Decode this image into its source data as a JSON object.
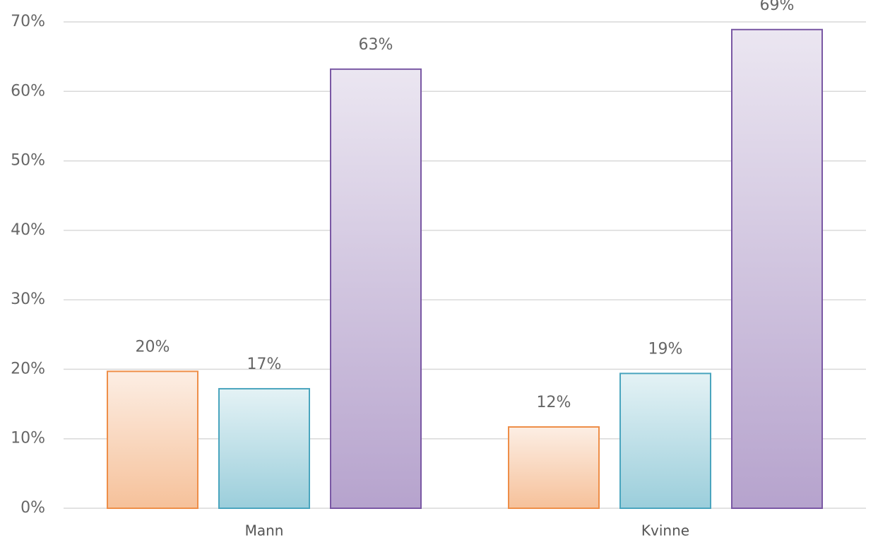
{
  "chart_data": {
    "type": "bar",
    "categories": [
      "Mann",
      "Kvinne"
    ],
    "series": [
      {
        "color": "#ee8e48",
        "values": [
          19.7,
          11.7
        ],
        "value_labels": [
          "20%",
          "12%"
        ]
      },
      {
        "color": "#4aa5be",
        "values": [
          17.2,
          19.4
        ],
        "value_labels": [
          "17%",
          "19%"
        ]
      },
      {
        "color": "#7a58a4",
        "values": [
          63.2,
          68.9
        ],
        "value_labels": [
          "63%",
          "69%"
        ]
      }
    ],
    "ylim": [
      0,
      70
    ],
    "yticks": [
      {
        "value": 0,
        "label": "0%"
      },
      {
        "value": 10,
        "label": "10%"
      },
      {
        "value": 20,
        "label": "20%"
      },
      {
        "value": 30,
        "label": "30%"
      },
      {
        "value": 40,
        "label": "40%"
      },
      {
        "value": 50,
        "label": "50%"
      },
      {
        "value": 60,
        "label": "60%"
      },
      {
        "value": 70,
        "label": "70%"
      }
    ],
    "grid": true
  }
}
